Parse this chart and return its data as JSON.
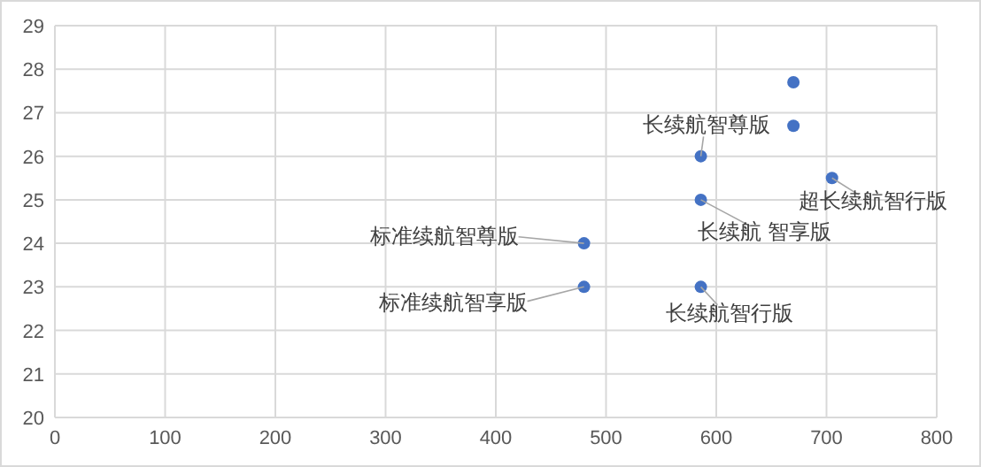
{
  "chart_data": {
    "type": "scatter",
    "xlim": [
      0,
      800
    ],
    "ylim": [
      20,
      29
    ],
    "xticks": [
      0,
      100,
      200,
      300,
      400,
      500,
      600,
      700,
      800
    ],
    "yticks": [
      20,
      21,
      22,
      23,
      24,
      25,
      26,
      27,
      28,
      29
    ],
    "grid": true,
    "marker": "circle",
    "series": [
      {
        "color": "#4472c4",
        "x": [
          480,
          480,
          586,
          586,
          586,
          670,
          670,
          705
        ],
        "values": [
          24,
          23,
          26,
          25,
          23,
          27.7,
          26.7,
          25.5
        ]
      }
    ],
    "annotations": [
      {
        "text": "长续航智尊版",
        "x": 586,
        "y": 26
      },
      {
        "text": "长续航 智享版",
        "x": 586,
        "y": 25
      },
      {
        "text": "标准续航智尊版",
        "x": 480,
        "y": 24
      },
      {
        "text": "标准续航智享版",
        "x": 480,
        "y": 23
      },
      {
        "text": "长续航智行版",
        "x": 586,
        "y": 23
      },
      {
        "text": "超长续航智行版",
        "x": 705,
        "y": 25.5
      }
    ]
  }
}
